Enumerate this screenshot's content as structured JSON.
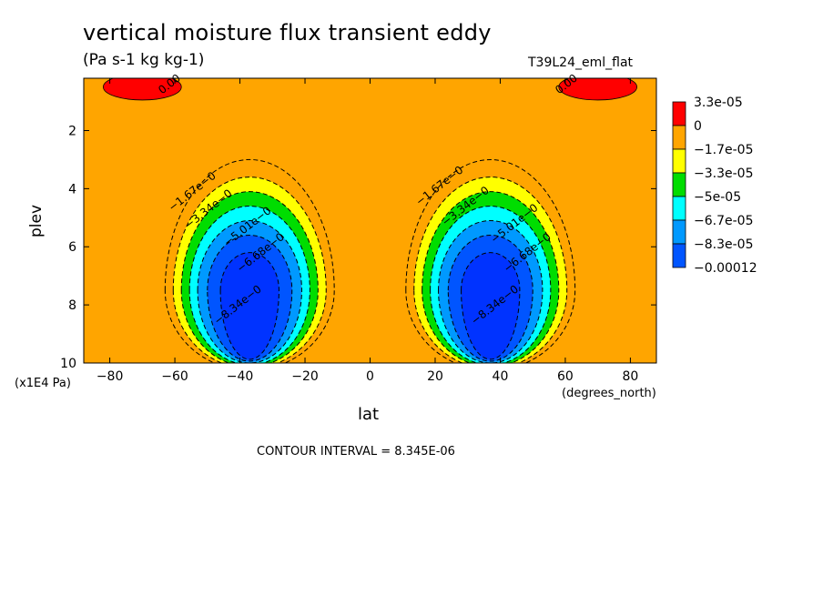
{
  "header": {
    "title": "vertical moisture flux transient eddy",
    "units": "(Pa s-1 kg kg-1)",
    "run_name": "T39L24_eml_flat"
  },
  "footer": {
    "contour_interval": "CONTOUR INTERVAL = 8.345E-06"
  },
  "chart_data": {
    "type": "heatmap",
    "subtype": "filled-contour",
    "xlabel": "lat",
    "x_units_label": "(degrees_north)",
    "ylabel": "plev",
    "y_units_label": "(x1E4 Pa)",
    "xlim": [
      -88,
      88
    ],
    "ylim": [
      10,
      0.2
    ],
    "y_inverted": true,
    "x_ticks": [
      -80,
      -60,
      -40,
      -20,
      0,
      20,
      40,
      60,
      80
    ],
    "y_ticks": [
      2,
      4,
      6,
      8,
      10
    ],
    "colorbar": {
      "placement": "right",
      "levels": [
        {
          "label": "3.3e-05",
          "color": "#ff0000"
        },
        {
          "label": "0",
          "color": "#ffa500"
        },
        {
          "label": "−1.7e-05",
          "color": "#ffff00"
        },
        {
          "label": "−3.3e-05",
          "color": "#00dd00"
        },
        {
          "label": "−5e-05",
          "color": "#00ffff"
        },
        {
          "label": "−6.7e-05",
          "color": "#0099ff"
        },
        {
          "label": "−8.3e-05",
          "color": "#0055ff"
        },
        {
          "label": "−0.00012",
          "color": "#0033ff"
        }
      ]
    },
    "features": [
      {
        "type": "minimum",
        "lat_center": -37,
        "plev_center": 7.5,
        "min_value": -0.0001
      },
      {
        "type": "minimum",
        "lat_center": 37,
        "plev_center": 7.5,
        "min_value": -0.0001
      },
      {
        "type": "maximum",
        "lat_center": -70,
        "plev_center": 0.5,
        "max_value": 3.3e-05
      },
      {
        "type": "maximum",
        "lat_center": 70,
        "plev_center": 0.5,
        "max_value": 3.3e-05
      }
    ],
    "contour_labels": [
      {
        "text": "0.00",
        "lat": -61,
        "plev": 0.5
      },
      {
        "text": "0.00",
        "lat": 61,
        "plev": 0.5
      },
      {
        "text": "−1.67e−0",
        "lat": -54,
        "plev": 4.2
      },
      {
        "text": "−3.34e−0",
        "lat": -49,
        "plev": 4.8
      },
      {
        "text": "−5.01e−0",
        "lat": -37,
        "plev": 5.4
      },
      {
        "text": "−6.68e−0",
        "lat": -33,
        "plev": 6.3
      },
      {
        "text": "−8.34e−0",
        "lat": -40,
        "plev": 8.1
      },
      {
        "text": "−1.67e−0",
        "lat": 22,
        "plev": 4.0
      },
      {
        "text": "−3.34e−0",
        "lat": 30,
        "plev": 4.7
      },
      {
        "text": "−5.01e−0",
        "lat": 45,
        "plev": 5.3
      },
      {
        "text": "−6.68e−0",
        "lat": 49,
        "plev": 6.3
      },
      {
        "text": "−8.34e−0",
        "lat": 39,
        "plev": 8.1
      }
    ]
  }
}
